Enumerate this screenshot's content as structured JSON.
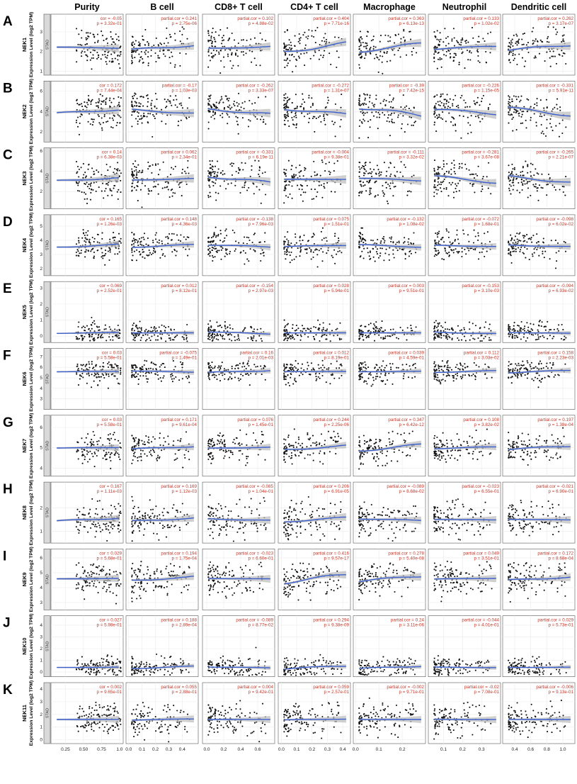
{
  "chart_data": {
    "type": "scatter",
    "columns": [
      "Purity",
      "B cell",
      "CD8+ T cell",
      "CD4+ T cell",
      "Macrophage",
      "Neutrophil",
      "Dendritic cell"
    ],
    "strip_label": "STAD",
    "y_axis_label": "Expression Level (log2 TPM)",
    "x_axes": [
      {
        "range": [
          0.05,
          1.05
        ],
        "ticks": [
          0.25,
          0.5,
          0.75,
          1.0
        ],
        "tick_labels": [
          "0.25",
          "0.50",
          "0.75",
          "1.0"
        ]
      },
      {
        "range": [
          -0.02,
          0.52
        ],
        "ticks": [
          0.0,
          0.1,
          0.2,
          0.3,
          0.4
        ],
        "tick_labels": [
          "0.0",
          "0.1",
          "0.2",
          "0.3",
          "0.4"
        ]
      },
      {
        "range": [
          -0.05,
          0.8
        ],
        "ticks": [
          0.0,
          0.2,
          0.4,
          0.6
        ],
        "tick_labels": [
          "0.0",
          "0.2",
          "0.4",
          "0.6"
        ]
      },
      {
        "range": [
          -0.02,
          0.45
        ],
        "ticks": [
          0.0,
          0.1,
          0.2,
          0.3,
          0.4
        ],
        "tick_labels": [
          "0.0",
          "0.1",
          "0.2",
          "0.3",
          "0.4"
        ]
      },
      {
        "range": [
          -0.01,
          0.3
        ],
        "ticks": [
          0.0,
          0.1,
          0.2
        ],
        "tick_labels": [
          "0.0",
          "0.1",
          "0.2"
        ]
      },
      {
        "range": [
          0.02,
          0.4
        ],
        "ticks": [
          0.1,
          0.2,
          0.3
        ],
        "tick_labels": [
          "0.1",
          "0.2",
          "0.3"
        ]
      },
      {
        "range": [
          0.25,
          1.15
        ],
        "ticks": [
          0.4,
          0.6,
          0.8,
          1.0
        ],
        "tick_labels": [
          "0.4",
          "0.6",
          "0.8",
          "1.0"
        ]
      }
    ],
    "rows": [
      {
        "letter": "A",
        "gene": "NEK1",
        "ylim": [
          0.8,
          3.9
        ],
        "yticks": [
          1,
          2,
          3
        ],
        "center": 2.2,
        "spread": 0.45,
        "stats": [
          [
            "cor = -0.05",
            "p = 3.32e-01"
          ],
          [
            "partial.cor = 0.241",
            "p = 2.75e-06"
          ],
          [
            "partial.cor = 0.102",
            "p = 4.88e-02"
          ],
          [
            "partial.cor = 0.404",
            "p = 7.71e-16"
          ],
          [
            "partial.cor = 0.363",
            "p = 6.13e-13"
          ],
          [
            "partial.cor = 0.133",
            "p = 1.02e-02"
          ],
          [
            "partial.cor = 0.262",
            "p = 3.17e-07"
          ]
        ]
      },
      {
        "letter": "B",
        "gene": "NEK2",
        "ylim": [
          1.0,
          7.0
        ],
        "yticks": [
          2,
          4,
          6
        ],
        "center": 4.0,
        "spread": 0.9,
        "stats": [
          [
            "cor = 0.172",
            "p = 7.44e-04"
          ],
          [
            "partial.cor = -0.17",
            "p = 1.03e-03"
          ],
          [
            "partial.cor = -0.262",
            "p = 3.33e-07"
          ],
          [
            "partial.cor = -0.272",
            "p = 1.31e-07"
          ],
          [
            "partial.cor = -0.39",
            "p = 7.42e-15"
          ],
          [
            "partial.cor = -0.226",
            "p = 1.15e-05"
          ],
          [
            "partial.cor = -0.331",
            "p = 5.91e-11"
          ]
        ]
      },
      {
        "letter": "C",
        "gene": "NEK3",
        "ylim": [
          0.3,
          6.3
        ],
        "yticks": [
          2,
          4,
          6
        ],
        "center": 3.2,
        "spread": 0.9,
        "stats": [
          [
            "cor = 0.14",
            "p = 6.38e-03"
          ],
          [
            "partial.cor = 0.062",
            "p = 2.34e-01"
          ],
          [
            "partial.cor = -0.331",
            "p = 6.19e-11"
          ],
          [
            "partial.cor = -0.004",
            "p = 9.38e-01"
          ],
          [
            "partial.cor = -0.111",
            "p = 3.32e-02"
          ],
          [
            "partial.cor = -0.281",
            "p = 3.67e-08"
          ],
          [
            "partial.cor = -0.265",
            "p = 2.21e-07"
          ]
        ]
      },
      {
        "letter": "D",
        "gene": "NEK4",
        "ylim": [
          1.5,
          5.8
        ],
        "yticks": [
          2,
          3,
          4,
          5
        ],
        "center": 3.6,
        "spread": 0.5,
        "stats": [
          [
            "cor = 0.165",
            "p = 1.26e-03"
          ],
          [
            "partial.cor = 0.148",
            "p = 4.36e-03"
          ],
          [
            "partial.cor = -0.138",
            "p = 7.96e-03"
          ],
          [
            "partial.cor = 0.075",
            "p = 1.51e-01"
          ],
          [
            "partial.cor = -0.132",
            "p = 1.08e-02"
          ],
          [
            "partial.cor = -0.072",
            "p = 1.68e-01"
          ],
          [
            "partial.cor = -0.098",
            "p = 6.02e-02"
          ]
        ]
      },
      {
        "letter": "E",
        "gene": "NEK5",
        "ylim": [
          -0.4,
          3.4
        ],
        "yticks": [
          0,
          1,
          2,
          3
        ],
        "center": 0.2,
        "spread": 0.3,
        "stats": [
          [
            "cor = 0.069",
            "p = 2.52e-01"
          ],
          [
            "partial.cor = 0.012",
            "p = 8.12e-01"
          ],
          [
            "partial.cor = -0.154",
            "p = 2.97e-03"
          ],
          [
            "partial.cor = 0.028",
            "p = 5.94e-01"
          ],
          [
            "partial.cor = 0.003",
            "p = 9.51e-01"
          ],
          [
            "partial.cor = -0.153",
            "p = 3.10e-03"
          ],
          [
            "partial.cor = -0.094",
            "p = 6.93e-02"
          ]
        ]
      },
      {
        "letter": "F",
        "gene": "NEK6",
        "ylim": [
          2.0,
          7.8
        ],
        "yticks": [
          3,
          4,
          5,
          6,
          7
        ],
        "center": 5.6,
        "spread": 0.55,
        "stats": [
          [
            "cor = 0.03",
            "p = 5.58e-01"
          ],
          [
            "partial.cor = -0.075",
            "p = 1.49e-01"
          ],
          [
            "partial.cor = 0.16",
            "p = 2.01e-03"
          ],
          [
            "partial.cor = 0.012",
            "p = 8.19e-01"
          ],
          [
            "partial.cor = 0.039",
            "p = 4.59e-01"
          ],
          [
            "partial.cor = 0.112",
            "p = 3.03e-02"
          ],
          [
            "partial.cor = 0.158",
            "p = 2.23e-03"
          ]
        ]
      },
      {
        "letter": "G",
        "gene": "NEK7",
        "ylim": [
          3.6,
          6.6
        ],
        "yticks": [
          4,
          5,
          6
        ],
        "center": 5.0,
        "spread": 0.35,
        "stats": [
          [
            "cor = 0.03",
            "p = 5.58e-01"
          ],
          [
            "partial.cor = 0.171",
            "p = 9.61e-04"
          ],
          [
            "partial.cor = 0.076",
            "p = 1.45e-01"
          ],
          [
            "partial.cor = 0.244",
            "p = 2.25e-06"
          ],
          [
            "partial.cor = 0.347",
            "p = 6.42e-12"
          ],
          [
            "partial.cor = 0.108",
            "p = 3.82e-02"
          ],
          [
            "partial.cor = 0.197",
            "p = 1.38e-04"
          ]
        ]
      },
      {
        "letter": "H",
        "gene": "NEK8",
        "ylim": [
          0.5,
          3.1
        ],
        "yticks": [
          1,
          2
        ],
        "center": 1.5,
        "spread": 0.35,
        "stats": [
          [
            "cor = 0.167",
            "p = 1.11e-03"
          ],
          [
            "partial.cor = 0.169",
            "p = 1.12e-03"
          ],
          [
            "partial.cor = -0.085",
            "p = 1.04e-01"
          ],
          [
            "partial.cor = 0.206",
            "p = 6.91e-05"
          ],
          [
            "partial.cor = -0.089",
            "p = 8.68e-02"
          ],
          [
            "partial.cor = -0.023",
            "p = 6.55e-01"
          ],
          [
            "partial.cor = -0.021",
            "p = 6.90e-01"
          ]
        ]
      },
      {
        "letter": "I",
        "gene": "NEK9",
        "ylim": [
          2.5,
          6.6
        ],
        "yticks": [
          3,
          4,
          5,
          6
        ],
        "center": 4.6,
        "spread": 0.55,
        "stats": [
          [
            "cor = 0.029",
            "p = 5.68e-01"
          ],
          [
            "partial.cor = 0.194",
            "p = 1.75e-04"
          ],
          [
            "partial.cor = -0.023",
            "p = 6.60e-01"
          ],
          [
            "partial.cor = 0.416",
            "p = 9.57e-17"
          ],
          [
            "partial.cor = 0.278",
            "p = 5.40e-08"
          ],
          [
            "partial.cor = 0.049",
            "p = 3.51e-01"
          ],
          [
            "partial.cor = 0.172",
            "p = 8.68e-04"
          ]
        ]
      },
      {
        "letter": "J",
        "gene": "NEK10",
        "ylim": [
          -0.4,
          4.8
        ],
        "yticks": [
          0,
          1,
          2,
          3,
          4
        ],
        "center": 0.4,
        "spread": 0.4,
        "stats": [
          [
            "cor = 0.027",
            "p = 5.98e-01"
          ],
          [
            "partial.cor = 0.188",
            "p = 2.89e-04"
          ],
          [
            "partial.cor = -0.089",
            "p = 8.77e-02"
          ],
          [
            "partial.cor = 0.294",
            "p = 9.38e-09"
          ],
          [
            "partial.cor = 0.24",
            "p = 3.11e-06"
          ],
          [
            "partial.cor = -0.044",
            "p = 4.01e-01"
          ],
          [
            "partial.cor = 0.029",
            "p = 5.73e-01"
          ]
        ]
      },
      {
        "letter": "K",
        "gene": "NEK11",
        "ylim": [
          -0.3,
          4.5
        ],
        "yticks": [
          0,
          1,
          2,
          3,
          4
        ],
        "center": 1.6,
        "spread": 0.6,
        "stats": [
          [
            "cor = 0.002",
            "p = 9.65e-01"
          ],
          [
            "partial.cor = 0.055",
            "p = 2.88e-01"
          ],
          [
            "partial.cor = 0.004",
            "p = 9.42e-01"
          ],
          [
            "partial.cor = 0.059",
            "p = 2.57e-01"
          ],
          [
            "partial.cor = -0.002",
            "p = 9.71e-01"
          ],
          [
            "partial.cor = -0.02",
            "p = 7.08e-01"
          ],
          [
            "partial.cor = -0.006",
            "p = 9.13e-01"
          ]
        ]
      }
    ]
  }
}
